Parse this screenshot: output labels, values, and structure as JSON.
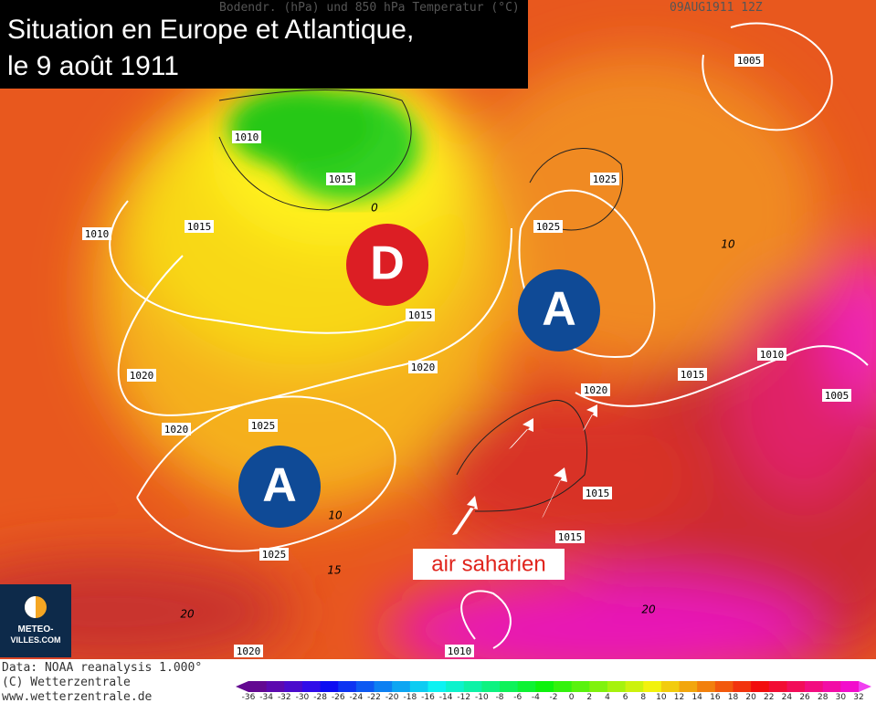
{
  "header": {
    "subtitle": "Bodendr. (hPa) und 850 hPa Temperatur (°C)",
    "timestamp": "09AUG1911 12Z"
  },
  "title": {
    "lines": [
      "Situation en Europe et Atlantique,",
      "le 9 août 1911"
    ]
  },
  "isobar_labels": [
    1010,
    1015,
    1015,
    1010,
    1025,
    1025,
    1005,
    1015,
    1020,
    1020,
    1020,
    1025,
    1010,
    1015,
    1005,
    1020,
    1015,
    1015,
    1025,
    1020,
    1010
  ],
  "temperature_labels": [
    0,
    10,
    10,
    15,
    20,
    20
  ],
  "markers": [
    "D",
    "A",
    "A"
  ],
  "annotation": "air saharien",
  "logo": {
    "lines": [
      "METEO-",
      "VILLES.COM"
    ]
  },
  "footer": {
    "lines": [
      "Data: NOAA reanalysis 1.000°",
      "(C) Wetterzentrale",
      "www.wetterzentrale.de"
    ]
  },
  "colorbar": {
    "labels": [
      -36,
      -34,
      -32,
      -30,
      -28,
      -26,
      -24,
      -22,
      -20,
      -18,
      -16,
      -14,
      -12,
      -10,
      -8,
      -6,
      -4,
      -2,
      0,
      2,
      4,
      6,
      8,
      10,
      12,
      14,
      16,
      18,
      20,
      22,
      24,
      26,
      28,
      30,
      32
    ]
  }
}
